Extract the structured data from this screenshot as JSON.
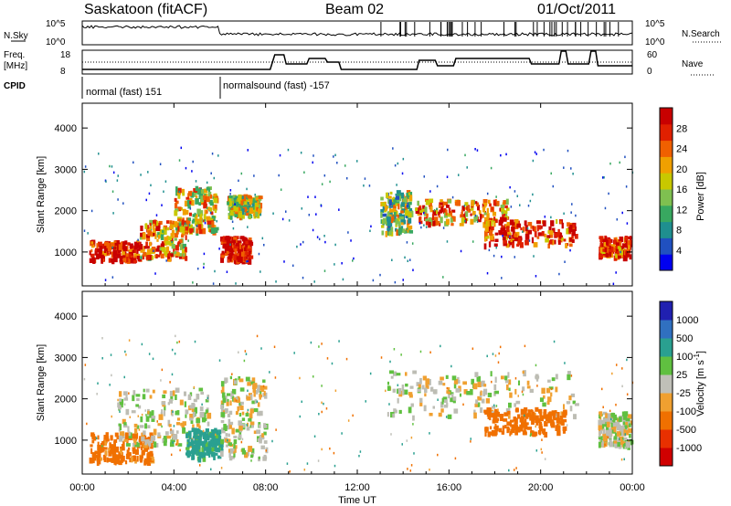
{
  "header": {
    "station": "Saskatoon (fitACF)",
    "beam": "Beam 02",
    "date": "01/Oct/2011"
  },
  "top_panels": {
    "nsky_label": "N.Sky",
    "nsky_left_ticks": [
      "10^5",
      "10^0"
    ],
    "nsearch_label": "N.Search",
    "nsearch_right_ticks": [
      "10^5",
      "10^0"
    ],
    "freq_label_1": "Freq.",
    "freq_label_2": "[MHz]",
    "freq_ticks": [
      "18",
      "8"
    ],
    "nave_label": "Nave",
    "nave_ticks": [
      "60",
      "0"
    ],
    "cpid_label": "CPID",
    "cpid_modes": [
      {
        "name": "normal (fast) 151",
        "start_hour": 0
      },
      {
        "name": "normalsound (fast) -157",
        "start_hour": 6
      }
    ]
  },
  "x_axis": {
    "label": "Time UT",
    "ticks": [
      "00:00",
      "04:00",
      "08:00",
      "12:00",
      "16:00",
      "20:00",
      "00:00"
    ],
    "range_hours": [
      0,
      24
    ]
  },
  "power_panel": {
    "ylabel": "Slant Range [km]",
    "yticks": [
      "4000",
      "3000",
      "2000",
      "1000"
    ],
    "colorbar_label": "Power [dB]",
    "colorbar_ticks": [
      "28",
      "24",
      "20",
      "16",
      "12",
      "8",
      "4"
    ],
    "colors": [
      "#0000f0",
      "#2050c0",
      "#1f8f8f",
      "#38a860",
      "#7fc050",
      "#c8c800",
      "#f0a000",
      "#f06000",
      "#e02000",
      "#c80000"
    ]
  },
  "velocity_panel": {
    "ylabel": "Slant Range [km]",
    "yticks": [
      "4000",
      "3000",
      "2000",
      "1000"
    ],
    "colorbar_label": "Velocity [m s^-1]",
    "colorbar_ticks": [
      "1000",
      "500",
      "100",
      "25",
      "-25",
      "-100",
      "-500",
      "-1000"
    ],
    "colors": [
      "#2020b0",
      "#3070c0",
      "#2aa090",
      "#60c040",
      "#c0c0b8",
      "#f0a030",
      "#f07000",
      "#e83000",
      "#d00000"
    ],
    "ground_scatter_color": "#bdbdb4"
  },
  "chart_data": [
    {
      "type": "heatmap",
      "title": "Power",
      "xlabel": "Time UT",
      "ylabel": "Slant Range [km]",
      "xlim": [
        0,
        24
      ],
      "ylim": [
        180,
        4600
      ],
      "zlabel": "Power [dB]",
      "zlim": [
        0,
        30
      ],
      "scatter_regions": [
        {
          "t": [
            0.3,
            2.5
          ],
          "range": [
            800,
            1300
          ],
          "power": 28
        },
        {
          "t": [
            2.5,
            4.5
          ],
          "range": [
            900,
            1800
          ],
          "power": 20
        },
        {
          "t": [
            4.0,
            5.8
          ],
          "range": [
            1500,
            2600
          ],
          "power": 18
        },
        {
          "t": [
            6.0,
            7.3
          ],
          "range": [
            800,
            1400
          ],
          "power": 30
        },
        {
          "t": [
            6.3,
            7.7
          ],
          "range": [
            1900,
            2400
          ],
          "power": 16
        },
        {
          "t": [
            13.0,
            14.3
          ],
          "range": [
            1500,
            2500
          ],
          "power": 14
        },
        {
          "t": [
            14.5,
            18.5
          ],
          "range": [
            1700,
            2300
          ],
          "power": 22
        },
        {
          "t": [
            17.5,
            21.5
          ],
          "range": [
            1200,
            1800
          ],
          "power": 26
        },
        {
          "t": [
            22.5,
            23.9
          ],
          "range": [
            900,
            1400
          ],
          "power": 26
        }
      ]
    },
    {
      "type": "heatmap",
      "title": "Velocity",
      "xlabel": "Time UT",
      "ylabel": "Slant Range [km]",
      "xlim": [
        0,
        24
      ],
      "ylim": [
        180,
        4600
      ],
      "zlabel": "Velocity [m s^-1]",
      "zlim": [
        -1000,
        1000
      ],
      "scatter_regions": [
        {
          "t": [
            0.3,
            3.0
          ],
          "range": [
            500,
            1200
          ],
          "velocity": -150
        },
        {
          "t": [
            1.5,
            5.5
          ],
          "range": [
            900,
            2300
          ],
          "velocity": 0
        },
        {
          "t": [
            4.5,
            6.0
          ],
          "range": [
            600,
            1300
          ],
          "velocity": 150
        },
        {
          "t": [
            6.0,
            8.0
          ],
          "range": [
            600,
            2600
          ],
          "velocity": 0
        },
        {
          "t": [
            13.3,
            21.5
          ],
          "range": [
            1600,
            2700
          ],
          "velocity": 0
        },
        {
          "t": [
            17.5,
            21.0
          ],
          "range": [
            1200,
            1800
          ],
          "velocity": -300
        },
        {
          "t": [
            22.5,
            23.9
          ],
          "range": [
            900,
            1700
          ],
          "velocity": 0
        }
      ]
    }
  ]
}
